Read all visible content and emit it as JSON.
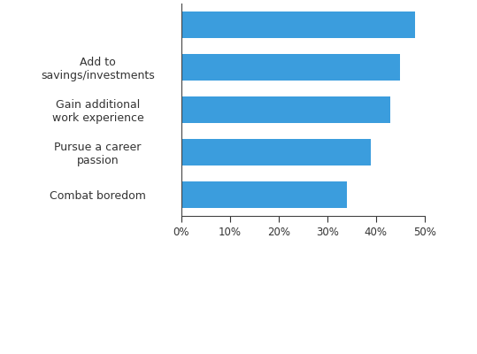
{
  "chart_data": {
    "type": "bar",
    "orientation": "horizontal",
    "categories": [
      null,
      "Add to savings/investments",
      "Gain additional work experience",
      "Pursue a career passion",
      "Combat boredom"
    ],
    "values": [
      48,
      45,
      43,
      39,
      34
    ],
    "color": "#3b9ddd",
    "xlim": [
      0,
      50
    ],
    "xticks": [
      {
        "value": 0,
        "label": "0%"
      },
      {
        "value": 10,
        "label": "10%"
      },
      {
        "value": 20,
        "label": "20%"
      },
      {
        "value": 30,
        "label": "30%"
      },
      {
        "value": 40,
        "label": "40%"
      },
      {
        "value": 50,
        "label": "50%"
      }
    ],
    "grid": false
  }
}
